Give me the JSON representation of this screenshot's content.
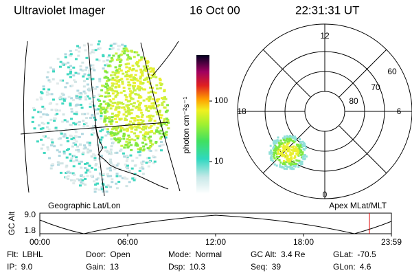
{
  "header": {
    "instrument": "Ultraviolet Imager",
    "date": "16 Oct 00",
    "time": "22:31:31 UT"
  },
  "colorbar": {
    "label": "photon cm⁻²s⁻¹",
    "ticks": [
      "100",
      "10"
    ]
  },
  "geographic": {
    "label": "Geographic Lat/Lon"
  },
  "polar": {
    "label": "Apex MLat/MLT",
    "mlt_labels": [
      "12",
      "18",
      "6",
      "0"
    ],
    "lat_labels": [
      "60",
      "70",
      "80"
    ]
  },
  "altitude": {
    "axis_label": "GC Alt",
    "yticks": [
      "9.0",
      "1.8"
    ],
    "xticks": [
      "00:00",
      "06:00",
      "12:00",
      "18:00",
      "23:59"
    ]
  },
  "status": {
    "rows": [
      [
        {
          "label": "Flt:",
          "value": "LBHL"
        },
        {
          "label": "Door:",
          "value": "Open"
        },
        {
          "label": "Mode:",
          "value": "Normal"
        },
        {
          "label": "GC Alt:",
          "value": "3.4 Re"
        },
        {
          "label": "GLat:",
          "value": "-70.5"
        }
      ],
      [
        {
          "label": "IP:",
          "value": "9.0"
        },
        {
          "label": "Gain:",
          "value": "13"
        },
        {
          "label": "Dsp:",
          "value": "10.3"
        },
        {
          "label": "Seq:",
          "value": "39"
        },
        {
          "label": "GLon:",
          "value": "4.6"
        }
      ]
    ]
  }
}
